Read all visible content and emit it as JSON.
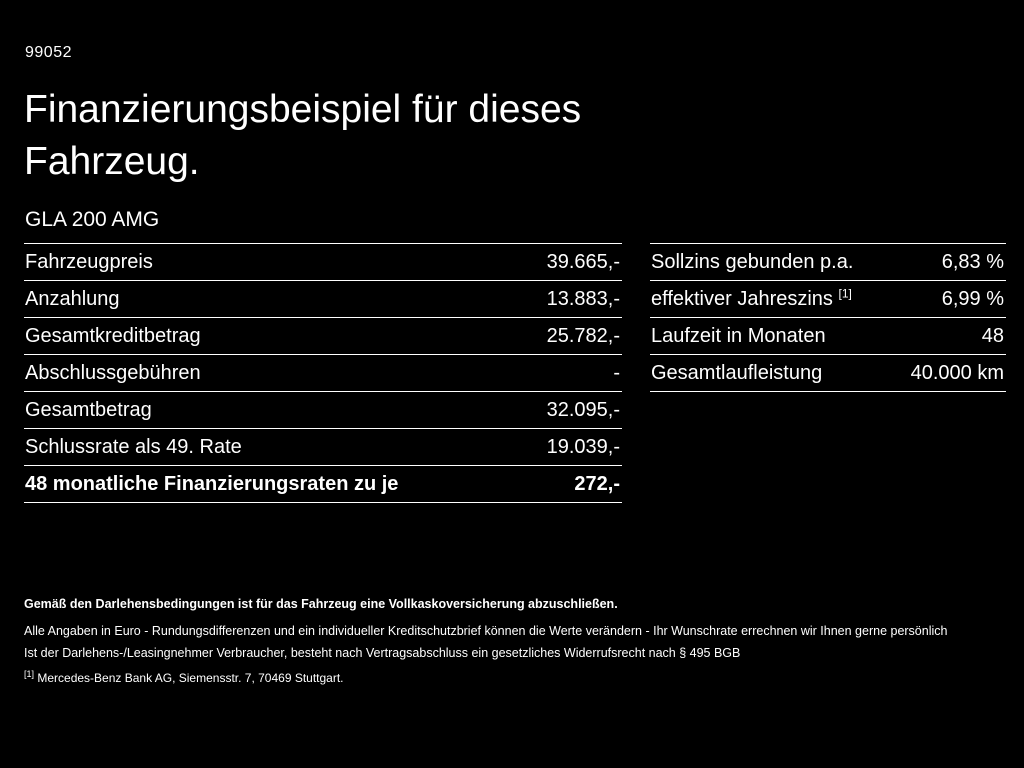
{
  "page": {
    "code": "99052",
    "title_line1": "Finanzierungsbeispiel für dieses",
    "title_line2": "Fahrzeug.",
    "model": "GLA 200 AMG"
  },
  "left_table": {
    "rows": [
      {
        "label": "Fahrzeugpreis",
        "value": "39.665,-"
      },
      {
        "label": "Anzahlung",
        "value": "13.883,-"
      },
      {
        "label": "Gesamtkreditbetrag",
        "value": "25.782,-"
      },
      {
        "label": "Abschlussgebühren",
        "value": "-"
      },
      {
        "label": "Gesamtbetrag",
        "value": "32.095,-"
      },
      {
        "label": "Schlussrate als 49. Rate",
        "value": "19.039,-"
      },
      {
        "label": "48 monatliche Finanzierungsraten zu je",
        "value": "272,-"
      }
    ]
  },
  "right_table": {
    "rows": [
      {
        "label": "Sollzins gebunden p.a.",
        "value": "6,83 %"
      },
      {
        "label": "effektiver Jahreszins",
        "sup": "[1]",
        "value": "6,99 %"
      },
      {
        "label": "Laufzeit in Monaten",
        "value": "48"
      },
      {
        "label": "Gesamtlaufleistung",
        "value": "40.000 km"
      }
    ]
  },
  "footnotes": {
    "bold_line": "Gemäß den Darlehensbedingungen ist für das Fahrzeug eine Vollkaskoversicherung abzuschließen.",
    "line2": "Alle Angaben in Euro - Rundungsdifferenzen und ein individueller Kreditschutzbrief können die Werte verändern - Ihr Wunschrate errechnen wir Ihnen gerne persönlich",
    "line3": "Ist der Darlehens-/Leasingnehmer Verbraucher, besteht nach Vertragsabschluss ein gesetzliches Widerrufsrecht nach § 495 BGB",
    "ref_marker": "[1]",
    "ref_text": "Mercedes-Benz Bank AG, Siemensstr. 7, 70469 Stuttgart."
  },
  "colors": {
    "background": "#000000",
    "text": "#ffffff"
  }
}
